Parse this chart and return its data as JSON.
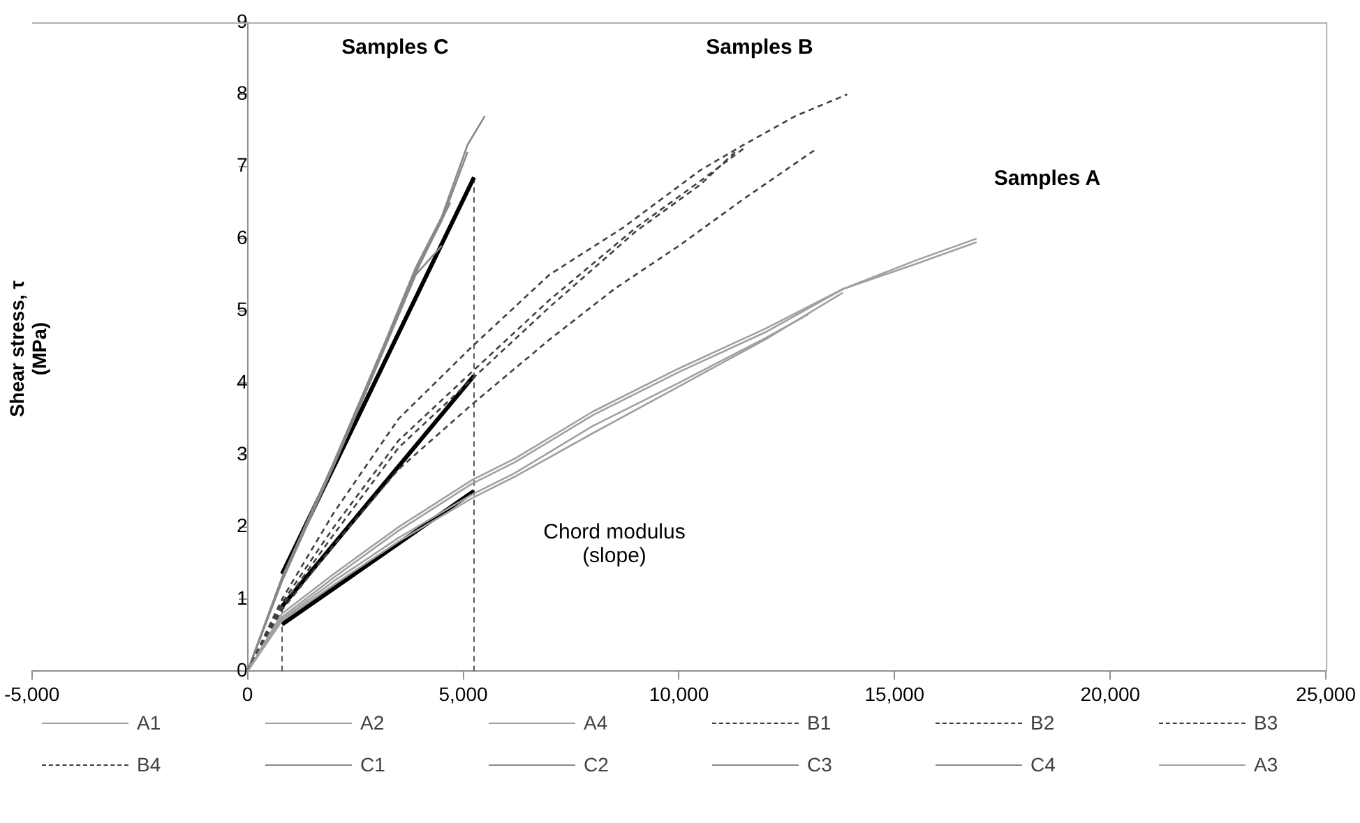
{
  "chart_data": {
    "type": "line",
    "ylabel": "Shear stress, τ\n(MPa)",
    "xlim": [
      -5000,
      25000
    ],
    "ylim": [
      0,
      9
    ],
    "xticks": [
      {
        "value": -5000,
        "label": "-5,000"
      },
      0,
      {
        "value": 5000,
        "label": "5,000"
      },
      {
        "value": 10000,
        "label": "10,000"
      },
      {
        "value": 15000,
        "label": "15,000"
      },
      {
        "value": 20000,
        "label": "20,000"
      },
      {
        "value": 25000,
        "label": "25,000"
      }
    ],
    "yticks": [
      0,
      1,
      2,
      3,
      4,
      5,
      6,
      7,
      8,
      9
    ],
    "legend": "bottom",
    "marker": "none",
    "annotations": [
      "Samples C",
      "Samples B",
      "Samples A",
      "Chord modulus\n(slope)"
    ],
    "series": [
      {
        "name": "A1",
        "color": "#a0a0a0",
        "line_style": "solid",
        "x": [
          0,
          800,
          2000,
          3500,
          5200,
          6200,
          8000,
          10000,
          12000,
          13800,
          15500,
          16900
        ],
        "values": [
          0,
          0.8,
          1.35,
          2.0,
          2.65,
          2.95,
          3.6,
          4.2,
          4.75,
          5.3,
          5.7,
          6.0
        ]
      },
      {
        "name": "A2",
        "color": "#a0a0a0",
        "line_style": "solid",
        "x": [
          0,
          800,
          2000,
          3500,
          5200,
          6200,
          8000,
          10000,
          12000,
          13800
        ],
        "values": [
          0,
          0.7,
          1.2,
          1.8,
          2.4,
          2.7,
          3.3,
          3.95,
          4.6,
          5.25
        ]
      },
      {
        "name": "A4",
        "color": "#a0a0a0",
        "line_style": "solid",
        "x": [
          0,
          800,
          2000,
          3500,
          5200,
          6200,
          8000,
          10000,
          12000,
          13000
        ],
        "values": [
          0,
          0.72,
          1.25,
          1.85,
          2.45,
          2.75,
          3.4,
          4.0,
          4.62,
          4.95
        ]
      },
      {
        "name": "B1",
        "color": "#404040",
        "line_style": "dashed",
        "x": [
          0,
          800,
          2000,
          3500,
          5200,
          7000,
          8700,
          10500,
          11500,
          12700,
          13900
        ],
        "values": [
          0,
          1.0,
          2.2,
          3.5,
          4.5,
          5.5,
          6.15,
          6.95,
          7.3,
          7.7,
          8.0
        ]
      },
      {
        "name": "B2",
        "color": "#404040",
        "line_style": "dashed",
        "x": [
          0,
          800,
          2000,
          3500,
          5200,
          7000,
          9000,
          10500,
          11500
        ],
        "values": [
          0,
          0.95,
          2.0,
          3.2,
          4.15,
          5.15,
          6.15,
          6.8,
          7.25
        ]
      },
      {
        "name": "B3",
        "color": "#404040",
        "line_style": "dashed",
        "x": [
          0,
          800,
          2000,
          3500,
          5200,
          7000,
          9000,
          10500,
          11300
        ],
        "values": [
          0,
          0.9,
          1.9,
          3.1,
          4.05,
          5.05,
          6.1,
          6.75,
          7.2
        ]
      },
      {
        "name": "B4",
        "color": "#404040",
        "line_style": "dashed",
        "x": [
          0,
          800,
          2000,
          3500,
          5200,
          7000,
          8500,
          10000,
          11500,
          13200
        ],
        "values": [
          0,
          0.85,
          1.75,
          2.8,
          3.7,
          4.6,
          5.3,
          5.9,
          6.55,
          7.25
        ]
      },
      {
        "name": "C1",
        "color": "#888888",
        "line_style": "solid",
        "x": [
          0,
          800,
          2000,
          2800,
          3900,
          4500,
          5100,
          5500
        ],
        "values": [
          0,
          1.3,
          2.9,
          4.0,
          5.6,
          6.3,
          7.3,
          7.7
        ]
      },
      {
        "name": "C2",
        "color": "#888888",
        "line_style": "solid",
        "x": [
          0,
          800,
          2000,
          2800,
          3900,
          4500
        ],
        "values": [
          0,
          1.25,
          2.85,
          3.95,
          5.5,
          5.9
        ]
      },
      {
        "name": "C3",
        "color": "#888888",
        "line_style": "solid",
        "x": [
          0,
          800,
          2000,
          2800,
          3900,
          4500,
          5100
        ],
        "values": [
          0,
          1.28,
          2.88,
          4.0,
          5.55,
          6.25,
          7.2
        ]
      },
      {
        "name": "C4",
        "color": "#888888",
        "line_style": "solid",
        "x": [
          0,
          800,
          2000,
          3000,
          4000,
          4700
        ],
        "values": [
          0,
          1.3,
          2.9,
          4.3,
          5.65,
          6.5
        ]
      },
      {
        "name": "A3",
        "color": "#a0a0a0",
        "line_style": "solid",
        "x": [
          0,
          800,
          2000,
          3500,
          5200,
          6200,
          8000,
          10000,
          12000,
          13800,
          15500,
          16900
        ],
        "values": [
          0,
          0.75,
          1.3,
          1.95,
          2.6,
          2.9,
          3.55,
          4.15,
          4.7,
          5.3,
          5.65,
          5.95
        ]
      },
      {
        "color": "#000000",
        "line_style": "solid",
        "x": [
          800,
          5250
        ],
        "values": [
          1.35,
          6.85
        ]
      },
      {
        "color": "#000000",
        "line_style": "solid",
        "x": [
          800,
          5250
        ],
        "values": [
          0.9,
          4.1
        ]
      },
      {
        "color": "#000000",
        "line_style": "solid",
        "x": [
          800,
          5250
        ],
        "values": [
          0.65,
          2.5
        ]
      },
      {
        "color": "#555555",
        "line_style": "dashed",
        "x": [
          800,
          800
        ],
        "values": [
          0,
          0.9
        ]
      },
      {
        "color": "#555555",
        "line_style": "dashed",
        "x": [
          5250,
          5250
        ],
        "values": [
          0,
          6.85
        ]
      }
    ]
  }
}
